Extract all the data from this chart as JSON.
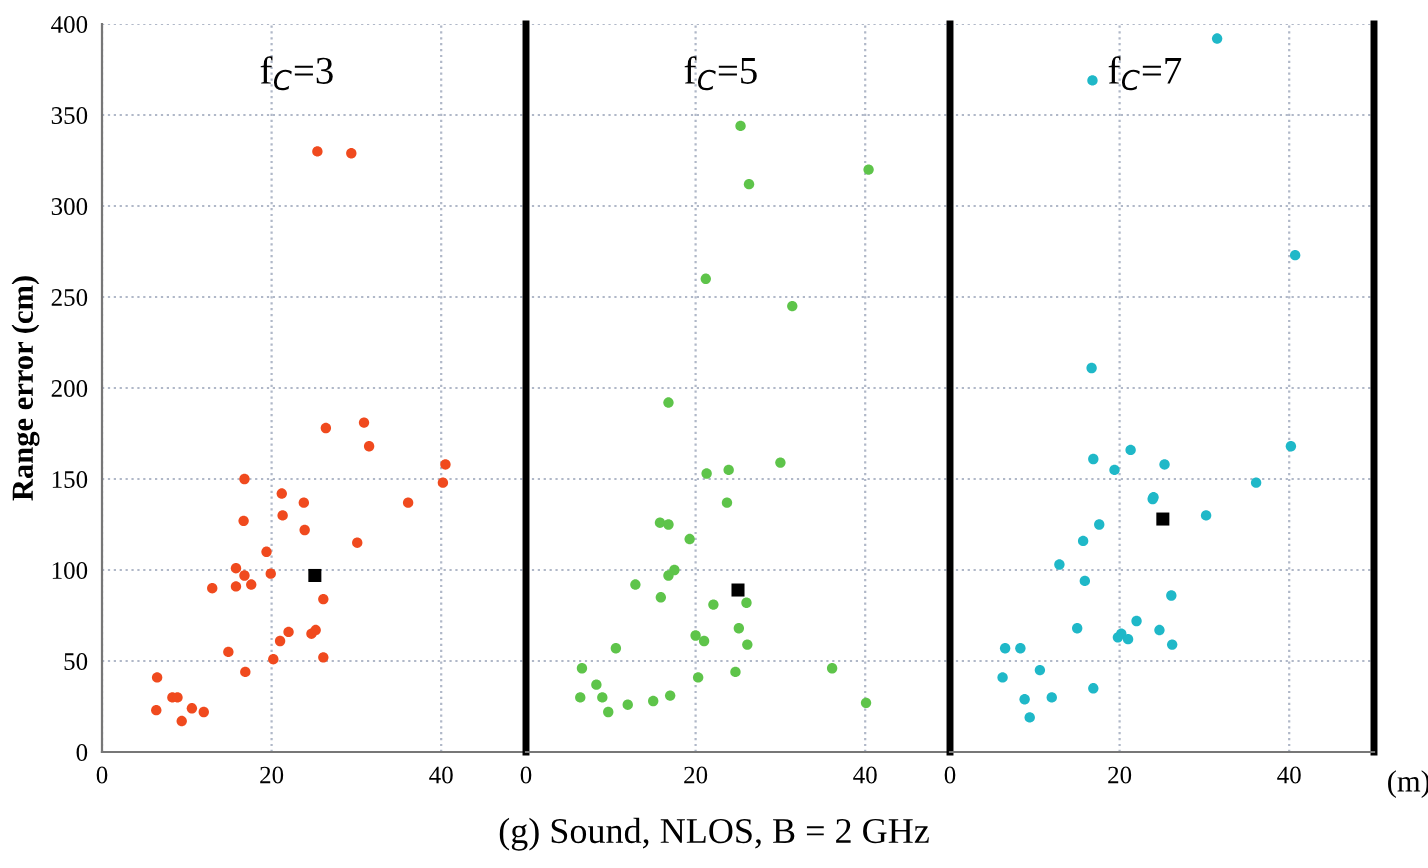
{
  "chart_data": [
    {
      "type": "scatter",
      "title": "f$_{C}$=3",
      "ylabel": "Range error (cm)",
      "xlim": [
        0,
        50
      ],
      "xticks": [
        0,
        20,
        40
      ],
      "ylim": [
        0,
        400
      ],
      "yticks": [
        0,
        50,
        100,
        150,
        200,
        250,
        300,
        350,
        400
      ],
      "grid": true,
      "marker": "circle",
      "series": [
        {
          "color": "#f04a1e",
          "x": [
            25.4,
            29.4,
            26.4,
            30.9,
            31.5,
            40.5,
            40.2,
            36.1,
            16.8,
            21.2,
            23.8,
            21.3,
            23.9,
            16.7,
            30.1,
            19.4,
            15.8,
            16.8,
            19.9,
            15.8,
            17.6,
            13.0,
            26.1,
            24.7,
            25.2,
            22.0,
            21.0,
            14.9,
            16.9,
            20.2,
            26.1,
            6.5,
            8.3,
            8.9,
            6.4,
            10.6,
            12.0,
            9.4
          ],
          "values": [
            330,
            329,
            178,
            181,
            168,
            158,
            148,
            137,
            150,
            142,
            137,
            130,
            122,
            127,
            115,
            110,
            101,
            97,
            98,
            91,
            92,
            90,
            84,
            65,
            67,
            66,
            61,
            55,
            44,
            51,
            52,
            41,
            30,
            30,
            23,
            24,
            22,
            17
          ]
        },
        {
          "color": "#000000",
          "marker": "square",
          "x": [
            25.1
          ],
          "values": [
            97
          ]
        }
      ]
    },
    {
      "type": "scatter",
      "title": "f$_{C}$=5",
      "xlim": [
        0,
        50
      ],
      "xticks": [
        0,
        20,
        40
      ],
      "ylim": [
        0,
        400
      ],
      "yticks": [
        0,
        50,
        100,
        150,
        200,
        250,
        300,
        350,
        400
      ],
      "grid": true,
      "marker": "circle",
      "tick_labels": "x",
      "annotations": [
        "(g) Sound, NLOS, B = 2 GHz"
      ],
      "series": [
        {
          "color": "#5ec44a",
          "x": [
            25.3,
            40.4,
            26.3,
            21.2,
            31.4,
            16.8,
            30.0,
            21.3,
            23.9,
            23.7,
            15.8,
            16.8,
            19.3,
            17.5,
            16.8,
            12.9,
            15.9,
            22.1,
            26.0,
            25.1,
            26.1,
            20.0,
            21.0,
            10.6,
            6.6,
            36.1,
            24.7,
            20.3,
            8.3,
            6.4,
            9.0,
            17.0,
            15.0,
            12.0,
            9.7,
            40.1
          ],
          "values": [
            344,
            320,
            312,
            260,
            245,
            192,
            159,
            153,
            155,
            137,
            126,
            125,
            117,
            100,
            97,
            92,
            85,
            81,
            82,
            68,
            59,
            64,
            61,
            57,
            46,
            46,
            44,
            41,
            37,
            30,
            30,
            31,
            28,
            26,
            22,
            27
          ]
        },
        {
          "color": "#000000",
          "marker": "square",
          "x": [
            25.0
          ],
          "values": [
            89
          ]
        }
      ]
    },
    {
      "type": "scatter",
      "title": "f$_{C}$=7",
      "xlabel": "(m)",
      "xlim": [
        0,
        50
      ],
      "xticks": [
        0,
        20,
        40
      ],
      "ylim": [
        0,
        400
      ],
      "yticks": [
        0,
        50,
        100,
        150,
        200,
        250,
        300,
        350,
        400
      ],
      "grid": true,
      "marker": "circle",
      "tick_labels": "x",
      "series": [
        {
          "color": "#1fb8c8",
          "x": [
            31.5,
            16.8,
            40.7,
            16.7,
            40.2,
            16.9,
            21.3,
            25.3,
            19.4,
            36.1,
            23.9,
            24.0,
            30.2,
            17.6,
            15.7,
            12.9,
            15.9,
            26.1,
            15.0,
            22.0,
            24.7,
            20.2,
            19.8,
            21.0,
            26.2,
            6.5,
            8.3,
            10.6,
            6.2,
            16.9,
            12.0,
            8.8,
            9.4
          ],
          "values": [
            392,
            369,
            273,
            211,
            168,
            161,
            166,
            158,
            155,
            148,
            139,
            140,
            130,
            125,
            116,
            103,
            94,
            86,
            68,
            72,
            67,
            65,
            63,
            62,
            59,
            57,
            57,
            45,
            41,
            35,
            30,
            29,
            19
          ]
        },
        {
          "color": "#000000",
          "marker": "square",
          "x": [
            25.1
          ],
          "values": [
            128
          ]
        }
      ]
    }
  ]
}
